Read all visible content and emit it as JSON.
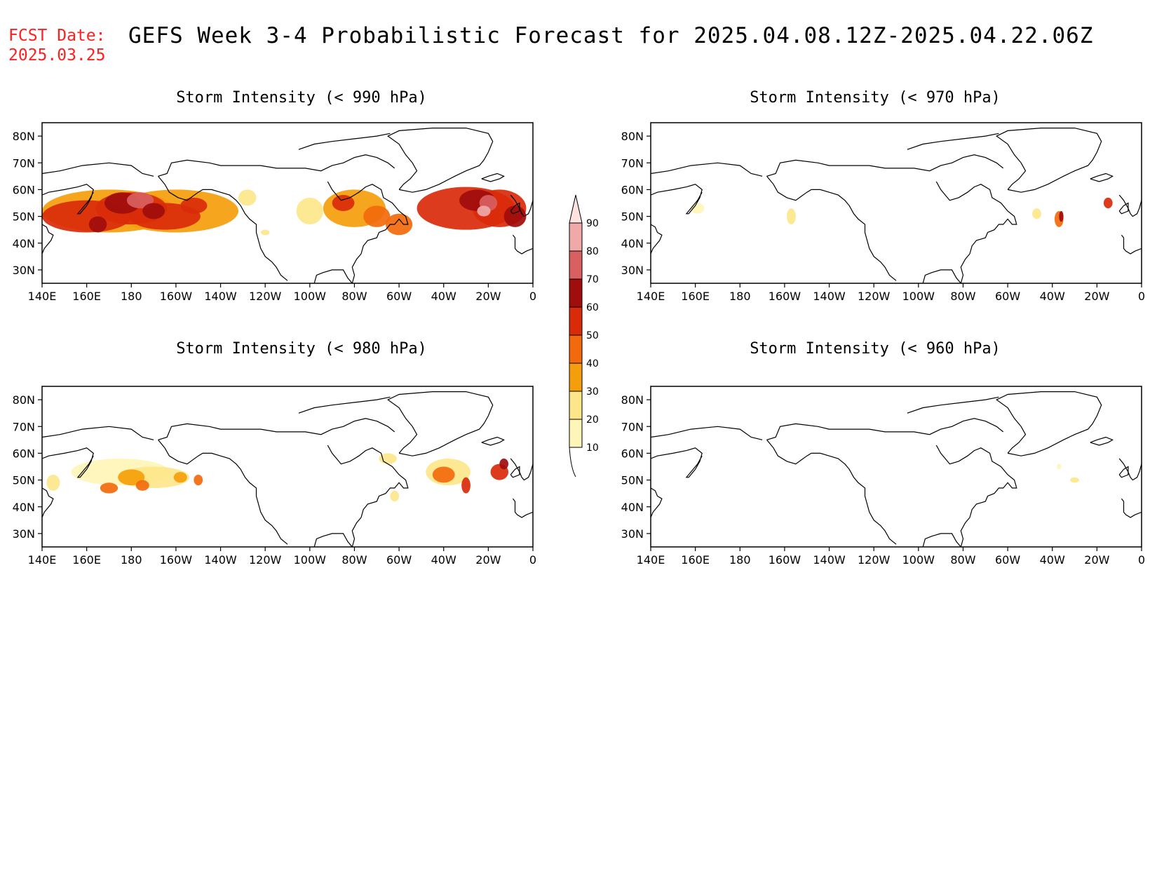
{
  "header": {
    "fcst_label": "FCST Date:",
    "fcst_date": "2025.03.25",
    "title": "GEFS Week 3-4 Probabilistic Forecast for 2025.04.08.12Z-2025.04.22.06Z"
  },
  "lat_labels": [
    "80N",
    "70N",
    "60N",
    "50N",
    "40N",
    "30N"
  ],
  "lon_labels": [
    "140E",
    "160E",
    "180",
    "160W",
    "140W",
    "120W",
    "100W",
    "80W",
    "60W",
    "40W",
    "20W",
    "0"
  ],
  "panels": [
    {
      "id": "p990",
      "title": "Storm Intensity (< 990 hPa)"
    },
    {
      "id": "p970",
      "title": "Storm Intensity (< 970 hPa)"
    },
    {
      "id": "p980",
      "title": "Storm Intensity (< 980 hPa)"
    },
    {
      "id": "p960",
      "title": "Storm Intensity (< 960 hPa)"
    }
  ],
  "colorbar": {
    "levels": [
      "10",
      "20",
      "30",
      "40",
      "50",
      "60",
      "70",
      "80",
      "90"
    ],
    "colors": [
      "#fff5b8",
      "#fde68a",
      "#f59e0b",
      "#f26a0c",
      "#d92b0a",
      "#a00d0d",
      "#d96060",
      "#f0a9a9",
      "#fde2e2"
    ]
  }
}
